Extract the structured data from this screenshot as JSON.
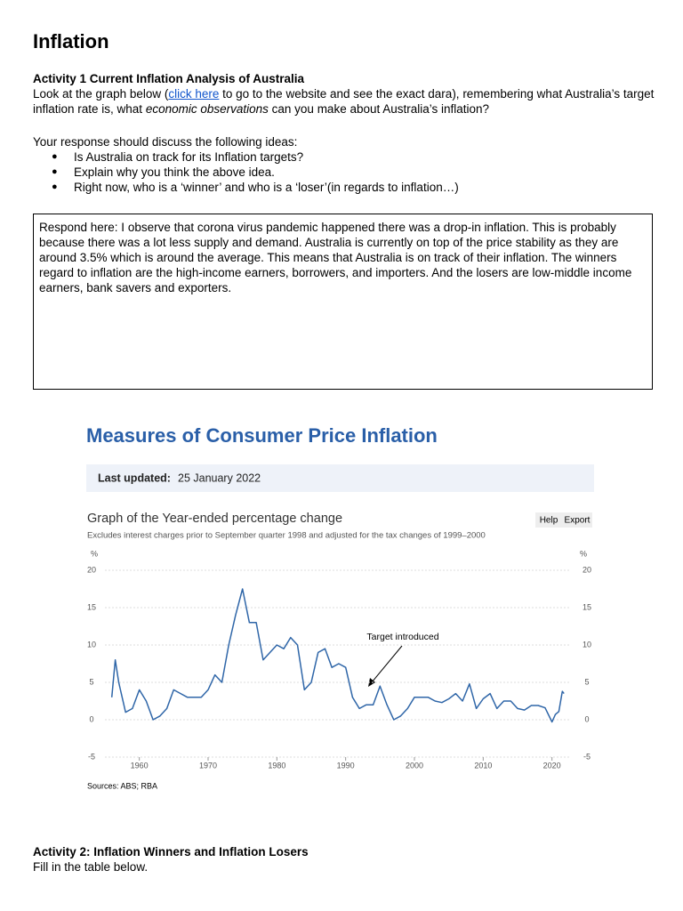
{
  "title": "Inflation",
  "activity1": {
    "heading": "Activity 1 Current Inflation Analysis of Australia",
    "intro": [
      "Look at the graph below (",
      "click here",
      " to go to the website and see the exact dara), remembering what Australia’s target inflation rate is, what ",
      "economic observations",
      " can you make about Australia’s inflation?"
    ],
    "prompt": "Your response should discuss the following ideas:",
    "bullets": [
      "Is Australia on track for its Inflation targets?",
      "Explain why you think the above idea.",
      "Right now, who is a ‘winner’ and who is a ‘loser’(in regards to inflation…)"
    ],
    "response": "Respond here: I observe that corona virus pandemic happened there was a drop-in inflation. This is probably because there was a lot less supply and demand. Australia is currently on top of the price stability as they are around 3.5% which is around the average. This means that Australia is on track of their inflation. The winners regard to inflation are the high-income earners, borrowers, and importers. And the losers are low-middle income earners, bank savers and exporters."
  },
  "chart_data": {
    "type": "line",
    "title": "Measures of Consumer Price Inflation",
    "last_updated_label": "Last updated:",
    "last_updated": "25 January 2022",
    "subtitle": "Graph of the Year-ended percentage change",
    "note": "Excludes interest charges prior to September quarter 1998 and adjusted for the tax changes of 1999–2000",
    "buttons": [
      "Help",
      "Export"
    ],
    "y_label": "%",
    "annotation": "Target introduced",
    "source": "Sources: ABS; RBA",
    "xlim": [
      1955,
      2022.5
    ],
    "xticks": [
      1960,
      1970,
      1980,
      1990,
      2000,
      2010,
      2020
    ],
    "ylim": [
      -5,
      20
    ],
    "yticks": [
      -5,
      0,
      5,
      10,
      15,
      20
    ],
    "grid": true,
    "x": [
      1956,
      1956.5,
      1957,
      1958,
      1959,
      1960,
      1961,
      1962,
      1963,
      1964,
      1965,
      1966,
      1967,
      1968,
      1969,
      1970,
      1971,
      1972,
      1973,
      1974,
      1975,
      1976,
      1977,
      1978,
      1979,
      1980,
      1981,
      1982,
      1983,
      1984,
      1985,
      1986,
      1987,
      1988,
      1989,
      1990,
      1991,
      1992,
      1993,
      1994,
      1995,
      1996,
      1997,
      1998,
      1999,
      2000,
      2001,
      2002,
      2003,
      2004,
      2005,
      2006,
      2007,
      2008,
      2009,
      2010,
      2011,
      2012,
      2013,
      2014,
      2015,
      2016,
      2017,
      2018,
      2019,
      2020,
      2020.5,
      2021,
      2021.5,
      2021.75
    ],
    "series": [
      {
        "name": "Year-ended percentage change",
        "color": "#2f66a8",
        "values": [
          3,
          8,
          5,
          1,
          1.5,
          4,
          2.5,
          0,
          0.5,
          1.5,
          4,
          3.5,
          3,
          3,
          3,
          4,
          6,
          5,
          10,
          14,
          17.5,
          13,
          13,
          8,
          9,
          10,
          9.5,
          11,
          10,
          4,
          5,
          9,
          9.5,
          7,
          7.5,
          7,
          3,
          1.5,
          2,
          2,
          4.5,
          2,
          0,
          0.5,
          1.5,
          3,
          3,
          3,
          2.5,
          2.3,
          2.8,
          3.5,
          2.5,
          4.8,
          1.5,
          2.8,
          3.5,
          1.5,
          2.5,
          2.5,
          1.5,
          1.3,
          1.9,
          1.9,
          1.6,
          -0.3,
          0.7,
          1.1,
          3.8,
          3.5
        ]
      }
    ]
  },
  "activity2": {
    "heading": "Activity 2: Inflation Winners and Inflation Losers",
    "instruction": "Fill in the table below."
  }
}
